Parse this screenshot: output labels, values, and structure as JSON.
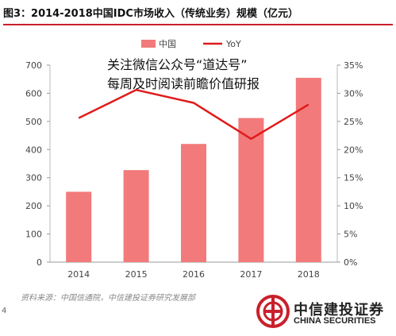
{
  "figure": {
    "title": "图3：2014-2018中国IDC市场收入（传统业务）规模（亿元）",
    "watermark_lines": [
      "关注微信公众号“道达号”",
      "每周及时阅读前瞻价值研报"
    ],
    "source": "资料来源：中国信通院，中信建投证券研究发展部",
    "page_number": "4",
    "logo": {
      "name": "中信建投证券",
      "english": "CHINA SECURITIES",
      "color": "#c9202b"
    }
  },
  "chart_data": {
    "type": "bar",
    "categories": [
      "2014",
      "2015",
      "2016",
      "2017",
      "2018"
    ],
    "series": [
      {
        "name": "中国",
        "type": "bar",
        "axis": "left",
        "values": [
          250,
          327,
          420,
          512,
          655
        ],
        "color": "#f27a7a"
      },
      {
        "name": "YoY",
        "type": "line",
        "axis": "right",
        "values": [
          25.6,
          30.6,
          28.3,
          21.9,
          28.0
        ],
        "color": "#e01b1b"
      }
    ],
    "y_left": {
      "min": 0,
      "max": 700,
      "step": 100,
      "ticks": [
        "0",
        "100",
        "200",
        "300",
        "400",
        "500",
        "600",
        "700"
      ]
    },
    "y_right": {
      "min": 0,
      "max": 35,
      "step": 5,
      "ticks": [
        "0%",
        "5%",
        "10%",
        "15%",
        "20%",
        "25%",
        "30%",
        "35%"
      ]
    },
    "legend_position": "top-center",
    "grid": false
  }
}
